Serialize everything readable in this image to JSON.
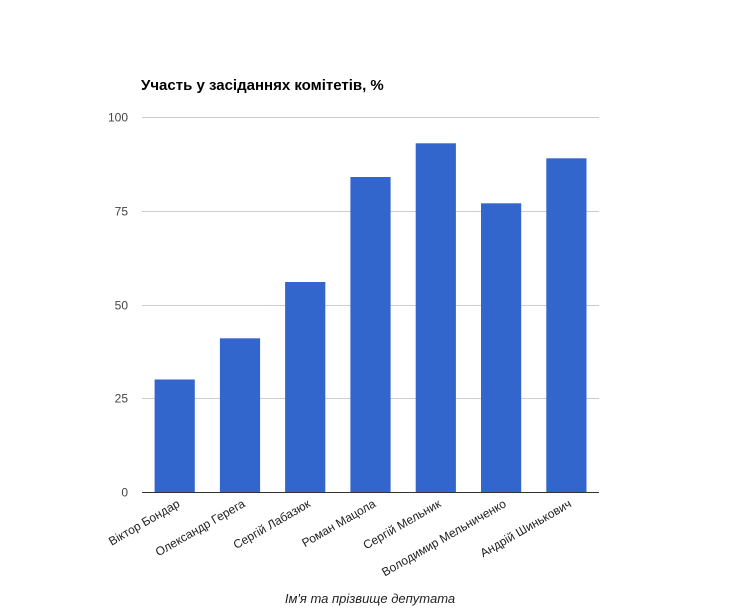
{
  "chart_data": {
    "type": "bar",
    "title": "Участь у засіданнях комітетів, %",
    "xlabel": "Ім'я та прізвище депутата",
    "ylabel": "",
    "categories": [
      "Віктор Бондар",
      "Олександр Герега",
      "Сергій Лабазюк",
      "Роман Мацола",
      "Сергій Мельник",
      "Володимир Мельниченко",
      "Андрій Шинькович"
    ],
    "values": [
      30,
      41,
      56,
      84,
      93,
      77,
      89
    ],
    "ylim": [
      0,
      100
    ],
    "yticks": [
      0,
      25,
      50,
      75,
      100
    ],
    "grid": true,
    "legend": "none",
    "colors": {
      "bar": "#3366cc",
      "grid": "#cccccc",
      "axis": "#333333",
      "tick_label": "#444444"
    }
  }
}
